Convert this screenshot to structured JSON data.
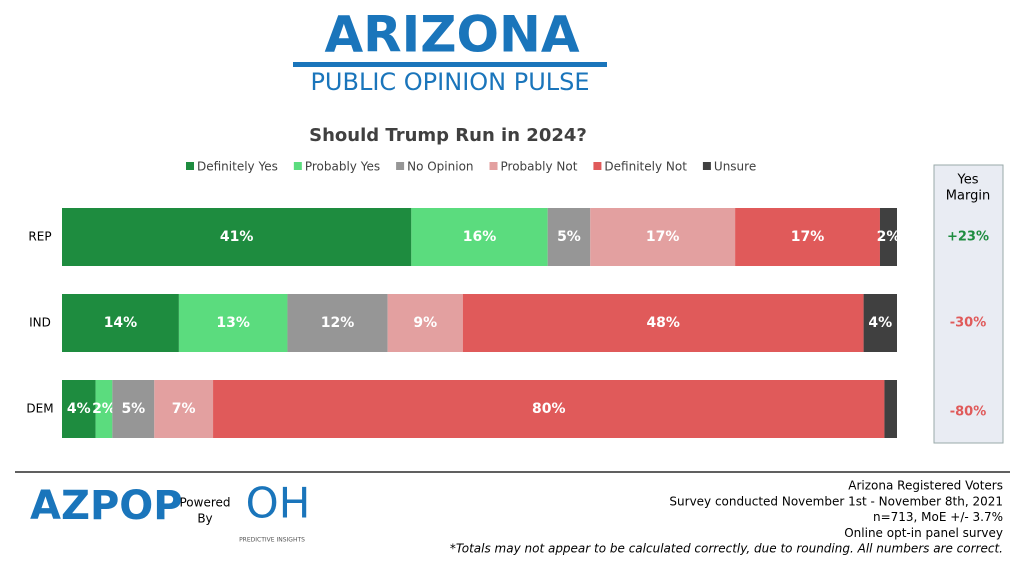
{
  "header": {
    "title": "ARIZONA",
    "subtitle": "PUBLIC OPINION PULSE"
  },
  "chart_data": {
    "type": "stacked-bar-100",
    "title": "Should Trump Run in 2024?",
    "categories": [
      "REP",
      "IND",
      "DEM"
    ],
    "series": [
      {
        "name": "Definitely Yes",
        "color": "#1e8c3f",
        "values": [
          41,
          14,
          4
        ],
        "value_labels": [
          "41%",
          "14%",
          "4%"
        ]
      },
      {
        "name": "Probably Yes",
        "color": "#5bdc7e",
        "values": [
          16,
          13,
          2
        ],
        "value_labels": [
          "16%",
          "13%",
          "2%"
        ]
      },
      {
        "name": "No Opinion",
        "color": "#969696",
        "values": [
          5,
          12,
          5
        ],
        "value_labels": [
          "5%",
          "12%",
          "5%"
        ]
      },
      {
        "name": "Probably Not",
        "color": "#e3a0a0",
        "values": [
          17,
          9,
          7
        ],
        "value_labels": [
          "17%",
          "9%",
          "7%"
        ]
      },
      {
        "name": "Definitely Not",
        "color": "#e05a5a",
        "values": [
          17,
          48,
          80
        ],
        "value_labels": [
          "17%",
          "48%",
          "80%"
        ]
      },
      {
        "name": "Unsure",
        "color": "#404040",
        "values": [
          2,
          4,
          1.5
        ],
        "value_labels": [
          "2%",
          "4%",
          null
        ]
      }
    ]
  },
  "margin": {
    "title": "Yes Margin",
    "values": [
      23,
      -30,
      -80
    ],
    "value_labels": [
      "+23%",
      "-30%",
      "-80%"
    ],
    "colors": [
      "#1e8c3f",
      "#e05a5a",
      "#e05a5a"
    ]
  },
  "footer": {
    "logo": "AZPOP",
    "powered": "Powered By",
    "partner_logo": "OH",
    "partner_name": "PREDICTIVE INSIGHTS",
    "notes": [
      "Arizona Registered Voters",
      "Survey conducted November 1st - November 8th, 2021",
      "n=713, MoE +/- 3.7%",
      "Online opt-in panel survey",
      "*Totals may not appear to be calculated correctly, due to rounding. All numbers are correct."
    ]
  }
}
